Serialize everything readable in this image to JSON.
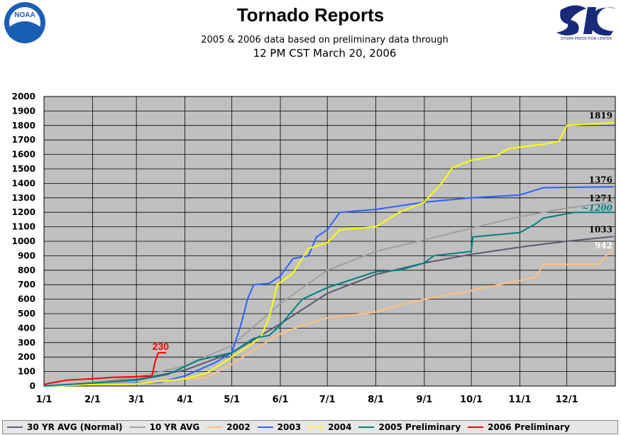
{
  "header": {
    "title": "Tornado Reports",
    "subtitle": "2005 & 2006 data based on preliminary data through",
    "subtitle2": "12 PM CST March 20, 2006"
  },
  "logos": {
    "left_text": "NOAA",
    "right_text": "SPC",
    "right_caption": "STORM PREDICTION CENTER"
  },
  "chart_data": {
    "type": "line",
    "title": "Tornado Reports",
    "subtitle": "2005 & 2006 data based on preliminary data through 12 PM CST March 20, 2006",
    "xlabel": "",
    "ylabel": "",
    "x_ticks": [
      "1/1",
      "2/1",
      "3/1",
      "4/1",
      "5/1",
      "6/1",
      "7/1",
      "8/1",
      "9/1",
      "10/1",
      "11/1",
      "12/1"
    ],
    "x_units": "day of year",
    "xlim": [
      1,
      366
    ],
    "ylim": [
      0,
      2000
    ],
    "y_ticks": [
      0,
      100,
      200,
      300,
      400,
      500,
      600,
      700,
      800,
      900,
      1000,
      1100,
      1200,
      1300,
      1400,
      1500,
      1600,
      1700,
      1800,
      1900,
      2000
    ],
    "grid": true,
    "plot_background": "#c0c0c0",
    "legend_position": "bottom",
    "series": [
      {
        "name": "30 YR AVG (Normal)",
        "color": "#5a5a7a",
        "end_label": "1033",
        "points": [
          [
            1,
            0
          ],
          [
            32,
            20
          ],
          [
            60,
            45
          ],
          [
            91,
            110
          ],
          [
            121,
            230
          ],
          [
            152,
            430
          ],
          [
            182,
            640
          ],
          [
            213,
            770
          ],
          [
            244,
            850
          ],
          [
            274,
            910
          ],
          [
            305,
            960
          ],
          [
            335,
            1000
          ],
          [
            365,
            1033
          ]
        ]
      },
      {
        "name": "10 YR AVG",
        "color": "#a0a0a0",
        "end_label": "1271",
        "points": [
          [
            1,
            0
          ],
          [
            32,
            25
          ],
          [
            60,
            60
          ],
          [
            91,
            140
          ],
          [
            121,
            280
          ],
          [
            152,
            570
          ],
          [
            182,
            800
          ],
          [
            213,
            930
          ],
          [
            244,
            1010
          ],
          [
            274,
            1090
          ],
          [
            305,
            1170
          ],
          [
            335,
            1230
          ],
          [
            365,
            1271
          ]
        ]
      },
      {
        "name": "2002",
        "color": "#ffc080",
        "end_label": "942",
        "points": [
          [
            1,
            0
          ],
          [
            32,
            10
          ],
          [
            60,
            20
          ],
          [
            91,
            50
          ],
          [
            105,
            60
          ],
          [
            121,
            150
          ],
          [
            135,
            250
          ],
          [
            152,
            360
          ],
          [
            166,
            420
          ],
          [
            182,
            470
          ],
          [
            213,
            510
          ],
          [
            228,
            560
          ],
          [
            244,
            600
          ],
          [
            259,
            630
          ],
          [
            274,
            660
          ],
          [
            305,
            730
          ],
          [
            315,
            750
          ],
          [
            320,
            840
          ],
          [
            355,
            840
          ],
          [
            360,
            900
          ],
          [
            365,
            942
          ]
        ]
      },
      {
        "name": "2003",
        "color": "#3060ff",
        "end_label": "1376",
        "points": [
          [
            1,
            0
          ],
          [
            32,
            10
          ],
          [
            60,
            20
          ],
          [
            75,
            25
          ],
          [
            91,
            70
          ],
          [
            110,
            160
          ],
          [
            121,
            230
          ],
          [
            127,
            430
          ],
          [
            131,
            600
          ],
          [
            135,
            700
          ],
          [
            145,
            710
          ],
          [
            152,
            760
          ],
          [
            160,
            880
          ],
          [
            170,
            900
          ],
          [
            175,
            1030
          ],
          [
            182,
            1080
          ],
          [
            190,
            1200
          ],
          [
            213,
            1220
          ],
          [
            244,
            1270
          ],
          [
            274,
            1300
          ],
          [
            305,
            1320
          ],
          [
            320,
            1370
          ],
          [
            365,
            1376
          ]
        ]
      },
      {
        "name": "2004",
        "color": "#ffff00",
        "end_label": "1819",
        "points": [
          [
            1,
            0
          ],
          [
            32,
            10
          ],
          [
            60,
            15
          ],
          [
            91,
            50
          ],
          [
            105,
            90
          ],
          [
            121,
            200
          ],
          [
            135,
            300
          ],
          [
            140,
            350
          ],
          [
            145,
            480
          ],
          [
            150,
            700
          ],
          [
            160,
            780
          ],
          [
            170,
            950
          ],
          [
            182,
            990
          ],
          [
            190,
            1080
          ],
          [
            213,
            1100
          ],
          [
            228,
            1200
          ],
          [
            244,
            1270
          ],
          [
            255,
            1400
          ],
          [
            262,
            1510
          ],
          [
            274,
            1560
          ],
          [
            290,
            1590
          ],
          [
            298,
            1640
          ],
          [
            320,
            1670
          ],
          [
            330,
            1690
          ],
          [
            335,
            1800
          ],
          [
            365,
            1819
          ]
        ]
      },
      {
        "name": "2005 Preliminary",
        "color": "#008080",
        "end_label": "~1200",
        "points": [
          [
            1,
            0
          ],
          [
            32,
            20
          ],
          [
            60,
            40
          ],
          [
            80,
            80
          ],
          [
            100,
            180
          ],
          [
            121,
            230
          ],
          [
            135,
            330
          ],
          [
            145,
            350
          ],
          [
            152,
            420
          ],
          [
            166,
            600
          ],
          [
            182,
            680
          ],
          [
            213,
            790
          ],
          [
            228,
            800
          ],
          [
            244,
            850
          ],
          [
            250,
            900
          ],
          [
            274,
            930
          ],
          [
            275,
            1030
          ],
          [
            305,
            1060
          ],
          [
            315,
            1120
          ],
          [
            320,
            1160
          ],
          [
            340,
            1200
          ],
          [
            365,
            1200
          ]
        ]
      },
      {
        "name": "2006 Preliminary",
        "color": "#ff0000",
        "end_label": "230",
        "points": [
          [
            1,
            10
          ],
          [
            5,
            20
          ],
          [
            15,
            40
          ],
          [
            32,
            50
          ],
          [
            45,
            60
          ],
          [
            60,
            65
          ],
          [
            70,
            70
          ],
          [
            72,
            170
          ],
          [
            74,
            230
          ],
          [
            79,
            230
          ]
        ]
      }
    ]
  }
}
